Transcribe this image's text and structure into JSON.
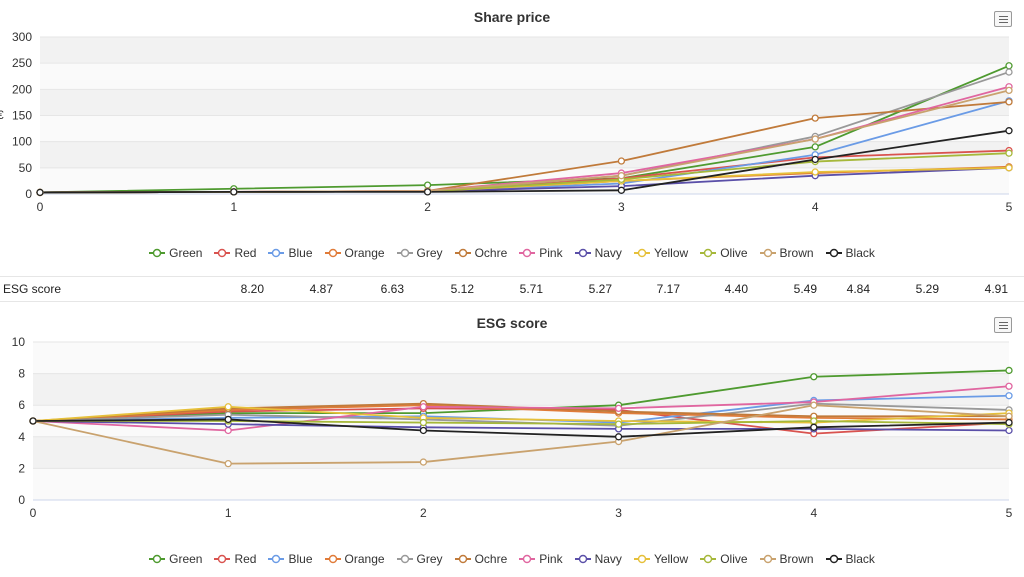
{
  "chart_data": [
    {
      "type": "line",
      "title": "Share price",
      "x": [
        0,
        1,
        2,
        3,
        4,
        5
      ],
      "ylim": [
        0,
        300
      ],
      "y_ticks": [
        "0",
        "50",
        "100",
        "150",
        "200",
        "250",
        "300"
      ],
      "x_ticks": [
        "0",
        "1",
        "2",
        "3",
        "4",
        "5"
      ],
      "legend_position": "bottom",
      "ylabel_fragment": "€",
      "series": [
        {
          "name": "Green",
          "color": "#4e9a2f",
          "values": [
            3,
            10,
            17,
            30,
            90,
            245
          ]
        },
        {
          "name": "Red",
          "color": "#d9534f",
          "values": [
            3,
            4,
            5,
            30,
            70,
            83
          ]
        },
        {
          "name": "Blue",
          "color": "#6a9be6",
          "values": [
            3,
            4,
            5,
            20,
            75,
            178
          ]
        },
        {
          "name": "Orange",
          "color": "#e07b39",
          "values": [
            3,
            4,
            5,
            25,
            40,
            52
          ]
        },
        {
          "name": "Grey",
          "color": "#999999",
          "values": [
            3,
            4,
            5,
            35,
            110,
            233
          ]
        },
        {
          "name": "Ochre",
          "color": "#c07a3a",
          "values": [
            3,
            4,
            6,
            63,
            145,
            176
          ]
        },
        {
          "name": "Pink",
          "color": "#e066a0",
          "values": [
            3,
            4,
            6,
            40,
            105,
            205
          ]
        },
        {
          "name": "Navy",
          "color": "#5a4fa8",
          "values": [
            3,
            4,
            5,
            15,
            35,
            50
          ]
        },
        {
          "name": "Yellow",
          "color": "#e6c03a",
          "values": [
            3,
            4,
            5,
            25,
            42,
            50
          ]
        },
        {
          "name": "Olive",
          "color": "#a6b83a",
          "values": [
            3,
            4,
            5,
            28,
            62,
            78
          ]
        },
        {
          "name": "Brown",
          "color": "#c9a26e",
          "values": [
            3,
            4,
            6,
            35,
            105,
            198
          ]
        },
        {
          "name": "Black",
          "color": "#222222",
          "values": [
            3,
            4,
            4,
            7,
            66,
            121
          ]
        }
      ]
    },
    {
      "type": "line",
      "title": "ESG score",
      "x": [
        0,
        1,
        2,
        3,
        4,
        5
      ],
      "ylim": [
        0,
        10
      ],
      "y_ticks": [
        "0",
        "2",
        "4",
        "6",
        "8",
        "10"
      ],
      "x_ticks": [
        "0",
        "1",
        "2",
        "3",
        "4",
        "5"
      ],
      "legend_position": "bottom",
      "series": [
        {
          "name": "Green",
          "color": "#4e9a2f",
          "values": [
            5,
            5.5,
            5.5,
            6.0,
            7.8,
            8.2
          ]
        },
        {
          "name": "Red",
          "color": "#d9534f",
          "values": [
            5,
            5.6,
            5.8,
            5.7,
            4.2,
            4.9
          ]
        },
        {
          "name": "Blue",
          "color": "#6a9be6",
          "values": [
            5,
            5.2,
            5.3,
            4.9,
            6.3,
            6.6
          ]
        },
        {
          "name": "Orange",
          "color": "#e07b39",
          "values": [
            5,
            5.7,
            6.0,
            5.5,
            5.2,
            5.1
          ]
        },
        {
          "name": "Grey",
          "color": "#999999",
          "values": [
            5,
            5.4,
            5.1,
            4.7,
            6.1,
            5.7
          ]
        },
        {
          "name": "Ochre",
          "color": "#c07a3a",
          "values": [
            5,
            5.8,
            6.1,
            5.6,
            5.3,
            5.3
          ]
        },
        {
          "name": "Pink",
          "color": "#e066a0",
          "values": [
            5,
            4.4,
            5.9,
            5.8,
            6.2,
            7.2
          ]
        },
        {
          "name": "Navy",
          "color": "#5a4fa8",
          "values": [
            5,
            4.8,
            4.6,
            4.5,
            4.5,
            4.4
          ]
        },
        {
          "name": "Yellow",
          "color": "#e6c03a",
          "values": [
            5,
            5.9,
            5.2,
            5.0,
            4.9,
            5.5
          ]
        },
        {
          "name": "Olive",
          "color": "#a6b83a",
          "values": [
            5,
            5.0,
            4.9,
            4.8,
            5.0,
            4.8
          ]
        },
        {
          "name": "Brown",
          "color": "#c9a26e",
          "values": [
            5,
            2.3,
            2.4,
            3.7,
            6.0,
            5.3
          ]
        },
        {
          "name": "Black",
          "color": "#222222",
          "values": [
            5,
            5.1,
            4.4,
            4.0,
            4.6,
            4.9
          ]
        }
      ]
    }
  ],
  "esg_row": {
    "label": "ESG score",
    "values": [
      "8.20",
      "4.87",
      "6.63",
      "5.12",
      "5.71",
      "5.27",
      "7.17",
      "4.40",
      "5.49",
      "4.84",
      "5.29",
      "4.91"
    ]
  }
}
